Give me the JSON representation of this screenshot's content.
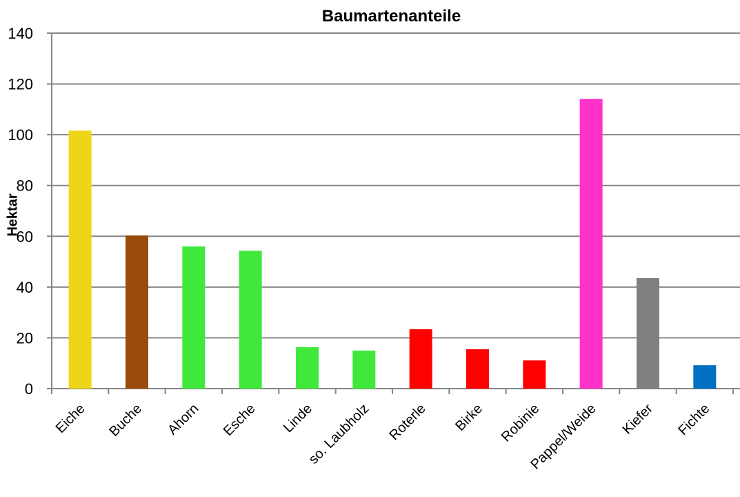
{
  "chart_data": {
    "type": "bar",
    "title": "Baumartenanteile",
    "xlabel": "",
    "ylabel": "Hektar",
    "ylim": [
      0,
      140
    ],
    "yticks": [
      0,
      20,
      40,
      60,
      80,
      100,
      120,
      140
    ],
    "grid": true,
    "legend": null,
    "categories": [
      "Eiche",
      "Buche",
      "Ahorn",
      "Esche",
      "Linde",
      "so. Laubholz",
      "Roterle",
      "Birke",
      "Robinie",
      "Pappel/Weide",
      "Kiefer",
      "Fichte"
    ],
    "values": [
      101.6,
      60.3,
      56,
      54.3,
      16.3,
      15,
      23.4,
      15.5,
      11.1,
      114.1,
      43.5,
      9.2
    ],
    "colors": [
      "#EED519",
      "#994C0A",
      "#41E83C",
      "#41E83C",
      "#41E83C",
      "#41E83C",
      "#FF0000",
      "#FF0000",
      "#FF0000",
      "#FF33CC",
      "#808080",
      "#0070C0"
    ]
  }
}
